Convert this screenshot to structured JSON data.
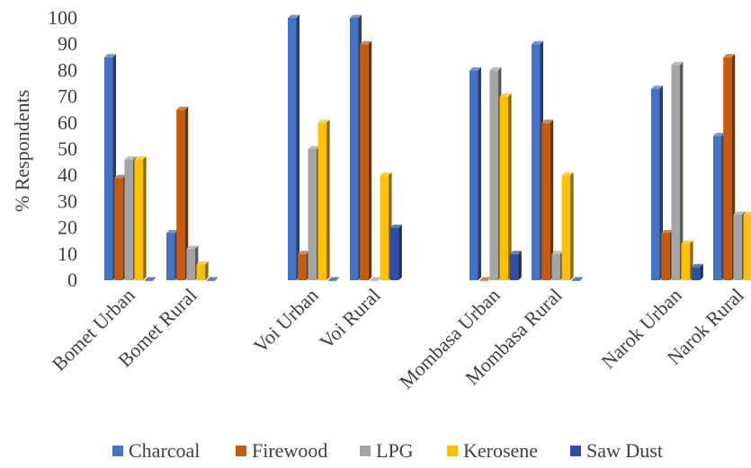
{
  "chart_data": {
    "type": "bar",
    "title": "",
    "xlabel": "",
    "ylabel": "% Respondents",
    "ylim": [
      0,
      100
    ],
    "yticks": [
      0,
      10,
      20,
      30,
      40,
      50,
      60,
      70,
      80,
      90,
      100
    ],
    "grid": false,
    "legend_position": "bottom",
    "style": "3d-column",
    "groups": [
      [
        "Bomet Urban",
        "Bomet Rural"
      ],
      [
        "Voi Urban",
        "Voi Rural"
      ],
      [
        "Mombasa Urban",
        "Mombasa Rural"
      ],
      [
        "Narok Urban",
        "Narok Rural"
      ]
    ],
    "categories": [
      "Bomet Urban",
      "Bomet Rural",
      "Voi Urban",
      "Voi Rural",
      "Mombasa Urban",
      "Mombasa Rural",
      "Narok Urban",
      "Narok Rural"
    ],
    "series": [
      {
        "name": "Charcoal",
        "color": "#4472C4",
        "values": [
          85,
          18,
          100,
          100,
          80,
          90,
          73,
          55
        ]
      },
      {
        "name": "Firewood",
        "color": "#C55A11",
        "values": [
          39,
          65,
          10,
          90,
          0,
          60,
          18,
          85
        ]
      },
      {
        "name": "LPG",
        "color": "#A5A5A5",
        "values": [
          46,
          12,
          50,
          0,
          80,
          10,
          82,
          25
        ]
      },
      {
        "name": "Kerosene",
        "color": "#FFC000",
        "values": [
          46,
          6,
          60,
          40,
          70,
          40,
          14,
          25
        ]
      },
      {
        "name": "Saw Dust",
        "color": "#2F4EA8",
        "values": [
          0,
          0,
          0,
          20,
          10,
          0,
          5,
          0
        ]
      }
    ]
  }
}
